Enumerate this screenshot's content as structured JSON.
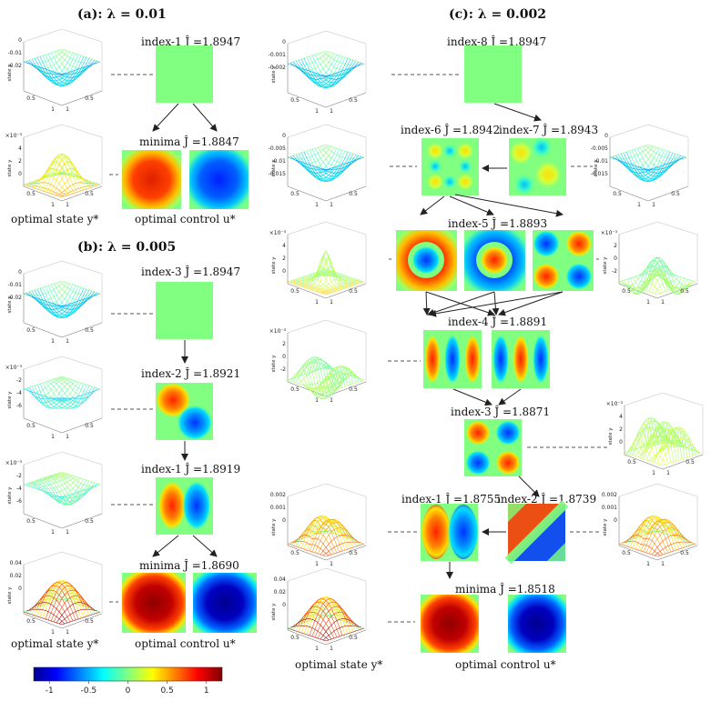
{
  "panels": {
    "a_title": "(a): λ = 0.01",
    "b_title": "(b): λ = 0.005",
    "c_title": "(c): λ = 0.002"
  },
  "labels": {
    "a_idx1": "index-1  Ĵ =1.8947",
    "a_min": "minima  Ĵ =1.8847",
    "b_idx3": "index-3  Ĵ =1.8947",
    "b_idx2": "index-2  Ĵ =1.8921",
    "b_idx1": "index-1  Ĵ =1.8919",
    "b_min": "minima  Ĵ =1.8690",
    "c_idx8": "index-8  Ĵ =1.8947",
    "c_idx6": "index-6  Ĵ =1.8942",
    "c_idx7": "index-7  Ĵ =1.8943",
    "c_idx5": "index-5  Ĵ =1.8893",
    "c_idx4": "index-4  Ĵ =1.8891",
    "c_idx3": "index-3  Ĵ =1.8871",
    "c_idx1": "index-1  Ĵ =1.8755",
    "c_idx2": "index-2  Ĵ =1.8739",
    "c_min": "minima  Ĵ =1.8518"
  },
  "captions": {
    "a_state": "optimal state y*",
    "a_control": "optimal control u*",
    "b_state": "optimal state y*",
    "b_control": "optimal control u*",
    "c_state": "optimal state y*",
    "c_control": "optimal control u*"
  },
  "axis": {
    "zlabel": "state y",
    "xticks": [
      "0.5",
      "1",
      "1",
      "0.5"
    ]
  },
  "zticks": {
    "a1": [
      "0",
      "-0.01",
      "-0.02"
    ],
    "a2": [
      "×10⁻³",
      "4",
      "2",
      "0"
    ],
    "b1": [
      "0",
      "-0.01",
      "-0.02"
    ],
    "b2": [
      "×10⁻³",
      "-2",
      "-4",
      "-6"
    ],
    "b3": [
      "×10⁻³",
      "-2",
      "-4",
      "-6"
    ],
    "b4": [
      "0.04",
      "0.02",
      "0"
    ],
    "c1": [
      "0",
      "-0.001",
      "-0.002"
    ],
    "c2": [
      "0",
      "-0.005",
      "-0.01",
      "-0.015"
    ],
    "c2r": [
      "0",
      "-0.005",
      "-0.01",
      "-0.015"
    ],
    "c3": [
      "×10⁻³",
      "4",
      "2",
      "0"
    ],
    "c3r": [
      "×10⁻³",
      "2",
      "0",
      "-2"
    ],
    "c4": [
      "×10⁻³",
      "2",
      "0",
      "-2"
    ],
    "c5r": [
      "×10⁻³",
      "4",
      "2",
      "0"
    ],
    "c6": [
      "0.002",
      "0.001",
      "0"
    ],
    "c6r": [
      "0.002",
      "0.001",
      "0"
    ],
    "c7": [
      "0.04",
      "0.02",
      "0"
    ]
  },
  "colorbar": {
    "ticks": [
      "-1",
      "-0.5",
      "0",
      "0.5",
      "1"
    ],
    "colors": [
      "#00008f",
      "#0040ff",
      "#00c0ff",
      "#80ff80",
      "#ffc000",
      "#ff2000",
      "#800000"
    ]
  },
  "colors": {
    "line": "#555555",
    "flat": "#80ff80"
  }
}
